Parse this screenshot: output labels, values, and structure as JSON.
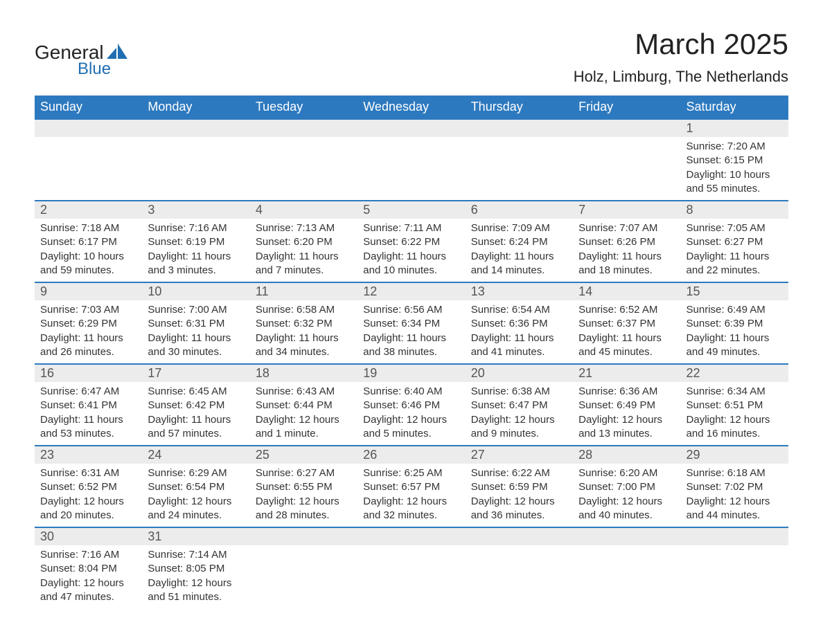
{
  "brand": {
    "line1": "General",
    "line2": "Blue",
    "sail_color": "#1f6fb2",
    "text_color": "#222222"
  },
  "title": {
    "month": "March 2025",
    "location": "Holz, Limburg, The Netherlands"
  },
  "colors": {
    "header_bg": "#2d79bf",
    "header_fg": "#ffffff",
    "daynum_bg": "#ececec",
    "row_border": "#2d79bf",
    "text": "#333333",
    "page_bg": "#ffffff"
  },
  "typography": {
    "title_fontsize": 42,
    "location_fontsize": 22,
    "weekday_fontsize": 18,
    "daynum_fontsize": 18,
    "detail_fontsize": 15
  },
  "weekdays": [
    "Sunday",
    "Monday",
    "Tuesday",
    "Wednesday",
    "Thursday",
    "Friday",
    "Saturday"
  ],
  "weeks": [
    [
      null,
      null,
      null,
      null,
      null,
      null,
      {
        "day": "1",
        "sunrise": "Sunrise: 7:20 AM",
        "sunset": "Sunset: 6:15 PM",
        "dl1": "Daylight: 10 hours",
        "dl2": "and 55 minutes."
      }
    ],
    [
      {
        "day": "2",
        "sunrise": "Sunrise: 7:18 AM",
        "sunset": "Sunset: 6:17 PM",
        "dl1": "Daylight: 10 hours",
        "dl2": "and 59 minutes."
      },
      {
        "day": "3",
        "sunrise": "Sunrise: 7:16 AM",
        "sunset": "Sunset: 6:19 PM",
        "dl1": "Daylight: 11 hours",
        "dl2": "and 3 minutes."
      },
      {
        "day": "4",
        "sunrise": "Sunrise: 7:13 AM",
        "sunset": "Sunset: 6:20 PM",
        "dl1": "Daylight: 11 hours",
        "dl2": "and 7 minutes."
      },
      {
        "day": "5",
        "sunrise": "Sunrise: 7:11 AM",
        "sunset": "Sunset: 6:22 PM",
        "dl1": "Daylight: 11 hours",
        "dl2": "and 10 minutes."
      },
      {
        "day": "6",
        "sunrise": "Sunrise: 7:09 AM",
        "sunset": "Sunset: 6:24 PM",
        "dl1": "Daylight: 11 hours",
        "dl2": "and 14 minutes."
      },
      {
        "day": "7",
        "sunrise": "Sunrise: 7:07 AM",
        "sunset": "Sunset: 6:26 PM",
        "dl1": "Daylight: 11 hours",
        "dl2": "and 18 minutes."
      },
      {
        "day": "8",
        "sunrise": "Sunrise: 7:05 AM",
        "sunset": "Sunset: 6:27 PM",
        "dl1": "Daylight: 11 hours",
        "dl2": "and 22 minutes."
      }
    ],
    [
      {
        "day": "9",
        "sunrise": "Sunrise: 7:03 AM",
        "sunset": "Sunset: 6:29 PM",
        "dl1": "Daylight: 11 hours",
        "dl2": "and 26 minutes."
      },
      {
        "day": "10",
        "sunrise": "Sunrise: 7:00 AM",
        "sunset": "Sunset: 6:31 PM",
        "dl1": "Daylight: 11 hours",
        "dl2": "and 30 minutes."
      },
      {
        "day": "11",
        "sunrise": "Sunrise: 6:58 AM",
        "sunset": "Sunset: 6:32 PM",
        "dl1": "Daylight: 11 hours",
        "dl2": "and 34 minutes."
      },
      {
        "day": "12",
        "sunrise": "Sunrise: 6:56 AM",
        "sunset": "Sunset: 6:34 PM",
        "dl1": "Daylight: 11 hours",
        "dl2": "and 38 minutes."
      },
      {
        "day": "13",
        "sunrise": "Sunrise: 6:54 AM",
        "sunset": "Sunset: 6:36 PM",
        "dl1": "Daylight: 11 hours",
        "dl2": "and 41 minutes."
      },
      {
        "day": "14",
        "sunrise": "Sunrise: 6:52 AM",
        "sunset": "Sunset: 6:37 PM",
        "dl1": "Daylight: 11 hours",
        "dl2": "and 45 minutes."
      },
      {
        "day": "15",
        "sunrise": "Sunrise: 6:49 AM",
        "sunset": "Sunset: 6:39 PM",
        "dl1": "Daylight: 11 hours",
        "dl2": "and 49 minutes."
      }
    ],
    [
      {
        "day": "16",
        "sunrise": "Sunrise: 6:47 AM",
        "sunset": "Sunset: 6:41 PM",
        "dl1": "Daylight: 11 hours",
        "dl2": "and 53 minutes."
      },
      {
        "day": "17",
        "sunrise": "Sunrise: 6:45 AM",
        "sunset": "Sunset: 6:42 PM",
        "dl1": "Daylight: 11 hours",
        "dl2": "and 57 minutes."
      },
      {
        "day": "18",
        "sunrise": "Sunrise: 6:43 AM",
        "sunset": "Sunset: 6:44 PM",
        "dl1": "Daylight: 12 hours",
        "dl2": "and 1 minute."
      },
      {
        "day": "19",
        "sunrise": "Sunrise: 6:40 AM",
        "sunset": "Sunset: 6:46 PM",
        "dl1": "Daylight: 12 hours",
        "dl2": "and 5 minutes."
      },
      {
        "day": "20",
        "sunrise": "Sunrise: 6:38 AM",
        "sunset": "Sunset: 6:47 PM",
        "dl1": "Daylight: 12 hours",
        "dl2": "and 9 minutes."
      },
      {
        "day": "21",
        "sunrise": "Sunrise: 6:36 AM",
        "sunset": "Sunset: 6:49 PM",
        "dl1": "Daylight: 12 hours",
        "dl2": "and 13 minutes."
      },
      {
        "day": "22",
        "sunrise": "Sunrise: 6:34 AM",
        "sunset": "Sunset: 6:51 PM",
        "dl1": "Daylight: 12 hours",
        "dl2": "and 16 minutes."
      }
    ],
    [
      {
        "day": "23",
        "sunrise": "Sunrise: 6:31 AM",
        "sunset": "Sunset: 6:52 PM",
        "dl1": "Daylight: 12 hours",
        "dl2": "and 20 minutes."
      },
      {
        "day": "24",
        "sunrise": "Sunrise: 6:29 AM",
        "sunset": "Sunset: 6:54 PM",
        "dl1": "Daylight: 12 hours",
        "dl2": "and 24 minutes."
      },
      {
        "day": "25",
        "sunrise": "Sunrise: 6:27 AM",
        "sunset": "Sunset: 6:55 PM",
        "dl1": "Daylight: 12 hours",
        "dl2": "and 28 minutes."
      },
      {
        "day": "26",
        "sunrise": "Sunrise: 6:25 AM",
        "sunset": "Sunset: 6:57 PM",
        "dl1": "Daylight: 12 hours",
        "dl2": "and 32 minutes."
      },
      {
        "day": "27",
        "sunrise": "Sunrise: 6:22 AM",
        "sunset": "Sunset: 6:59 PM",
        "dl1": "Daylight: 12 hours",
        "dl2": "and 36 minutes."
      },
      {
        "day": "28",
        "sunrise": "Sunrise: 6:20 AM",
        "sunset": "Sunset: 7:00 PM",
        "dl1": "Daylight: 12 hours",
        "dl2": "and 40 minutes."
      },
      {
        "day": "29",
        "sunrise": "Sunrise: 6:18 AM",
        "sunset": "Sunset: 7:02 PM",
        "dl1": "Daylight: 12 hours",
        "dl2": "and 44 minutes."
      }
    ],
    [
      {
        "day": "30",
        "sunrise": "Sunrise: 7:16 AM",
        "sunset": "Sunset: 8:04 PM",
        "dl1": "Daylight: 12 hours",
        "dl2": "and 47 minutes."
      },
      {
        "day": "31",
        "sunrise": "Sunrise: 7:14 AM",
        "sunset": "Sunset: 8:05 PM",
        "dl1": "Daylight: 12 hours",
        "dl2": "and 51 minutes."
      },
      null,
      null,
      null,
      null,
      null
    ]
  ]
}
